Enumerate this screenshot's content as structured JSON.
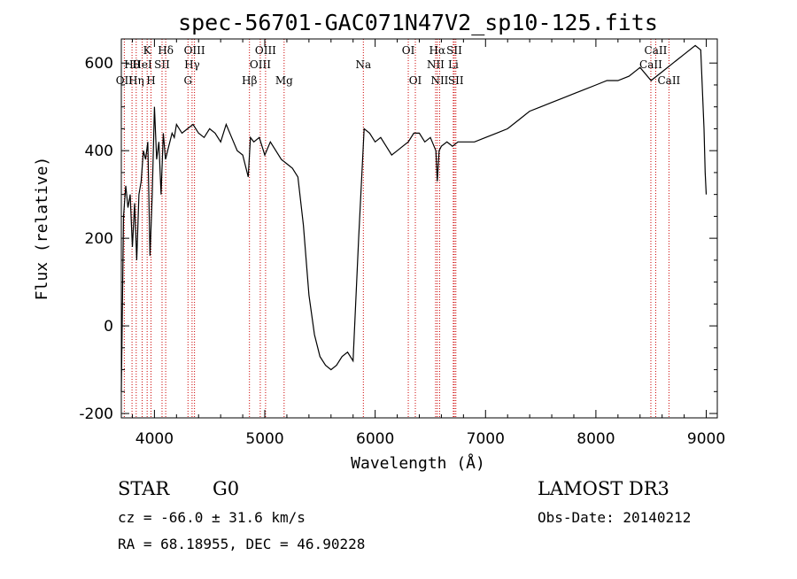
{
  "chart_data": {
    "type": "line",
    "title": "spec-56701-GAC071N47V2_sp10-125.fits",
    "xlabel": "Wavelength (Å)",
    "ylabel": "Flux (relative)",
    "xlim": [
      3700,
      9100
    ],
    "ylim": [
      -210,
      655
    ],
    "xticks": [
      4000,
      5000,
      6000,
      7000,
      8000,
      9000
    ],
    "yticks": [
      -200,
      0,
      200,
      400,
      600
    ],
    "grid": false,
    "series": [
      {
        "color": "#000000",
        "x": [
          3700,
          3720,
          3740,
          3760,
          3780,
          3800,
          3820,
          3840,
          3860,
          3880,
          3900,
          3920,
          3940,
          3960,
          3980,
          4000,
          4020,
          4040,
          4060,
          4080,
          4100,
          4120,
          4140,
          4160,
          4180,
          4200,
          4250,
          4300,
          4350,
          4400,
          4450,
          4500,
          4550,
          4600,
          4650,
          4700,
          4750,
          4800,
          4850,
          4870,
          4900,
          4950,
          5000,
          5050,
          5100,
          5150,
          5200,
          5250,
          5300,
          5350,
          5400,
          5450,
          5500,
          5550,
          5600,
          5650,
          5700,
          5750,
          5800,
          5850,
          5900,
          5950,
          6000,
          6050,
          6100,
          6150,
          6200,
          6250,
          6300,
          6350,
          6400,
          6450,
          6500,
          6550,
          6563,
          6580,
          6600,
          6650,
          6700,
          6750,
          6800,
          6900,
          7000,
          7100,
          7200,
          7300,
          7400,
          7500,
          7600,
          7700,
          7800,
          7900,
          8000,
          8100,
          8200,
          8300,
          8400,
          8500,
          8600,
          8700,
          8800,
          8900,
          8950,
          8980,
          8990,
          9000
        ],
        "y": [
          -150,
          250,
          320,
          270,
          300,
          180,
          280,
          150,
          300,
          330,
          400,
          380,
          420,
          160,
          300,
          500,
          380,
          420,
          300,
          440,
          380,
          400,
          420,
          440,
          430,
          460,
          440,
          450,
          460,
          440,
          430,
          450,
          440,
          420,
          460,
          430,
          400,
          390,
          340,
          430,
          420,
          430,
          390,
          420,
          400,
          380,
          370,
          360,
          340,
          230,
          70,
          -20,
          -70,
          -90,
          -100,
          -90,
          -70,
          -60,
          -80,
          200,
          450,
          440,
          420,
          430,
          410,
          390,
          400,
          410,
          420,
          440,
          440,
          420,
          430,
          400,
          330,
          400,
          410,
          420,
          410,
          420,
          420,
          420,
          430,
          440,
          450,
          470,
          490,
          500,
          510,
          520,
          530,
          540,
          550,
          560,
          560,
          570,
          590,
          560,
          580,
          600,
          620,
          640,
          630,
          450,
          350,
          300
        ]
      }
    ],
    "line_labels": [
      {
        "text": "Hθ",
        "x": 3797,
        "row": 1
      },
      {
        "text": "OII",
        "x": 3727,
        "row": 2
      },
      {
        "text": "Hη",
        "x": 3835,
        "row": 2
      },
      {
        "text": "HeI",
        "x": 3889,
        "row": 1
      },
      {
        "text": "K",
        "x": 3934,
        "row": 0
      },
      {
        "text": "SII",
        "x": 4069,
        "row": 1
      },
      {
        "text": "H",
        "x": 3969,
        "row": 2
      },
      {
        "text": "Hδ",
        "x": 4102,
        "row": 0
      },
      {
        "text": "OIII",
        "x": 4363,
        "row": 0
      },
      {
        "text": "Hγ",
        "x": 4341,
        "row": 1
      },
      {
        "text": "G",
        "x": 4304,
        "row": 2
      },
      {
        "text": "Hβ",
        "x": 4861,
        "row": 2
      },
      {
        "text": "OIII",
        "x": 5007,
        "row": 0
      },
      {
        "text": "OIII",
        "x": 4959,
        "row": 1
      },
      {
        "text": "Mg",
        "x": 5175,
        "row": 2
      },
      {
        "text": "Na",
        "x": 5893,
        "row": 1
      },
      {
        "text": "OI",
        "x": 6300,
        "row": 0
      },
      {
        "text": "OI",
        "x": 6364,
        "row": 2
      },
      {
        "text": "Hα",
        "x": 6563,
        "row": 0
      },
      {
        "text": "NII",
        "x": 6548,
        "row": 1
      },
      {
        "text": "NII",
        "x": 6584,
        "row": 2
      },
      {
        "text": "SII",
        "x": 6717,
        "row": 0
      },
      {
        "text": "Li",
        "x": 6708,
        "row": 1
      },
      {
        "text": "SII",
        "x": 6731,
        "row": 2
      },
      {
        "text": "CaII",
        "x": 8542,
        "row": 0
      },
      {
        "text": "CaII",
        "x": 8498,
        "row": 1
      },
      {
        "text": "CaII",
        "x": 8662,
        "row": 2
      }
    ],
    "line_positions": [
      3727,
      3797,
      3835,
      3889,
      3934,
      3969,
      4069,
      4102,
      4304,
      4341,
      4363,
      4861,
      4959,
      5007,
      5175,
      5893,
      6300,
      6364,
      6548,
      6563,
      6584,
      6708,
      6717,
      6731,
      8498,
      8542,
      8662
    ],
    "line_color": "#cc0000"
  },
  "info": {
    "class": "STAR",
    "subclass": "G0",
    "survey": "LAMOST DR3",
    "cz": "cz = -66.0 ± 31.6 km/s",
    "obs_date": "Obs-Date: 20140212",
    "radec": "RA =  68.18955, DEC =  46.90228"
  }
}
